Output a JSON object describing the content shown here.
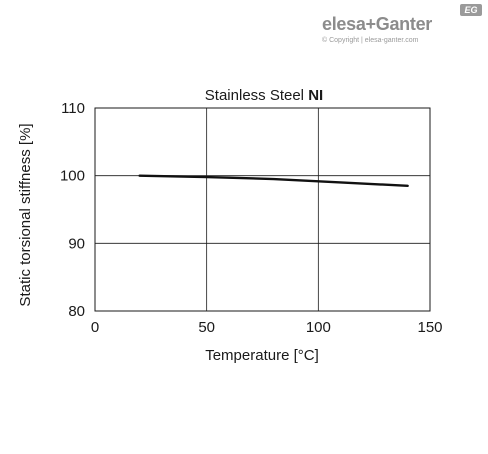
{
  "logo": {
    "brand_part1": "elesa",
    "brand_plus": "+",
    "brand_part2": "Ganter",
    "copyright": "© Copyright | elesa-ganter.com",
    "badge": "EG"
  },
  "chart_data": {
    "type": "line",
    "title_prefix": "Stainless Steel ",
    "title_bold": "NI",
    "xlabel": "Temperature [°C]",
    "ylabel": "Static torsional stiffness [%]",
    "xlim": [
      0,
      150
    ],
    "ylim": [
      80,
      110
    ],
    "xticks": [
      0,
      50,
      100,
      150
    ],
    "yticks": [
      80,
      90,
      100,
      110
    ],
    "grid": true,
    "series": [
      {
        "x": [
          20,
          50,
          80,
          110,
          140
        ],
        "y": [
          100,
          99.8,
          99.5,
          99.0,
          98.5
        ]
      }
    ]
  }
}
